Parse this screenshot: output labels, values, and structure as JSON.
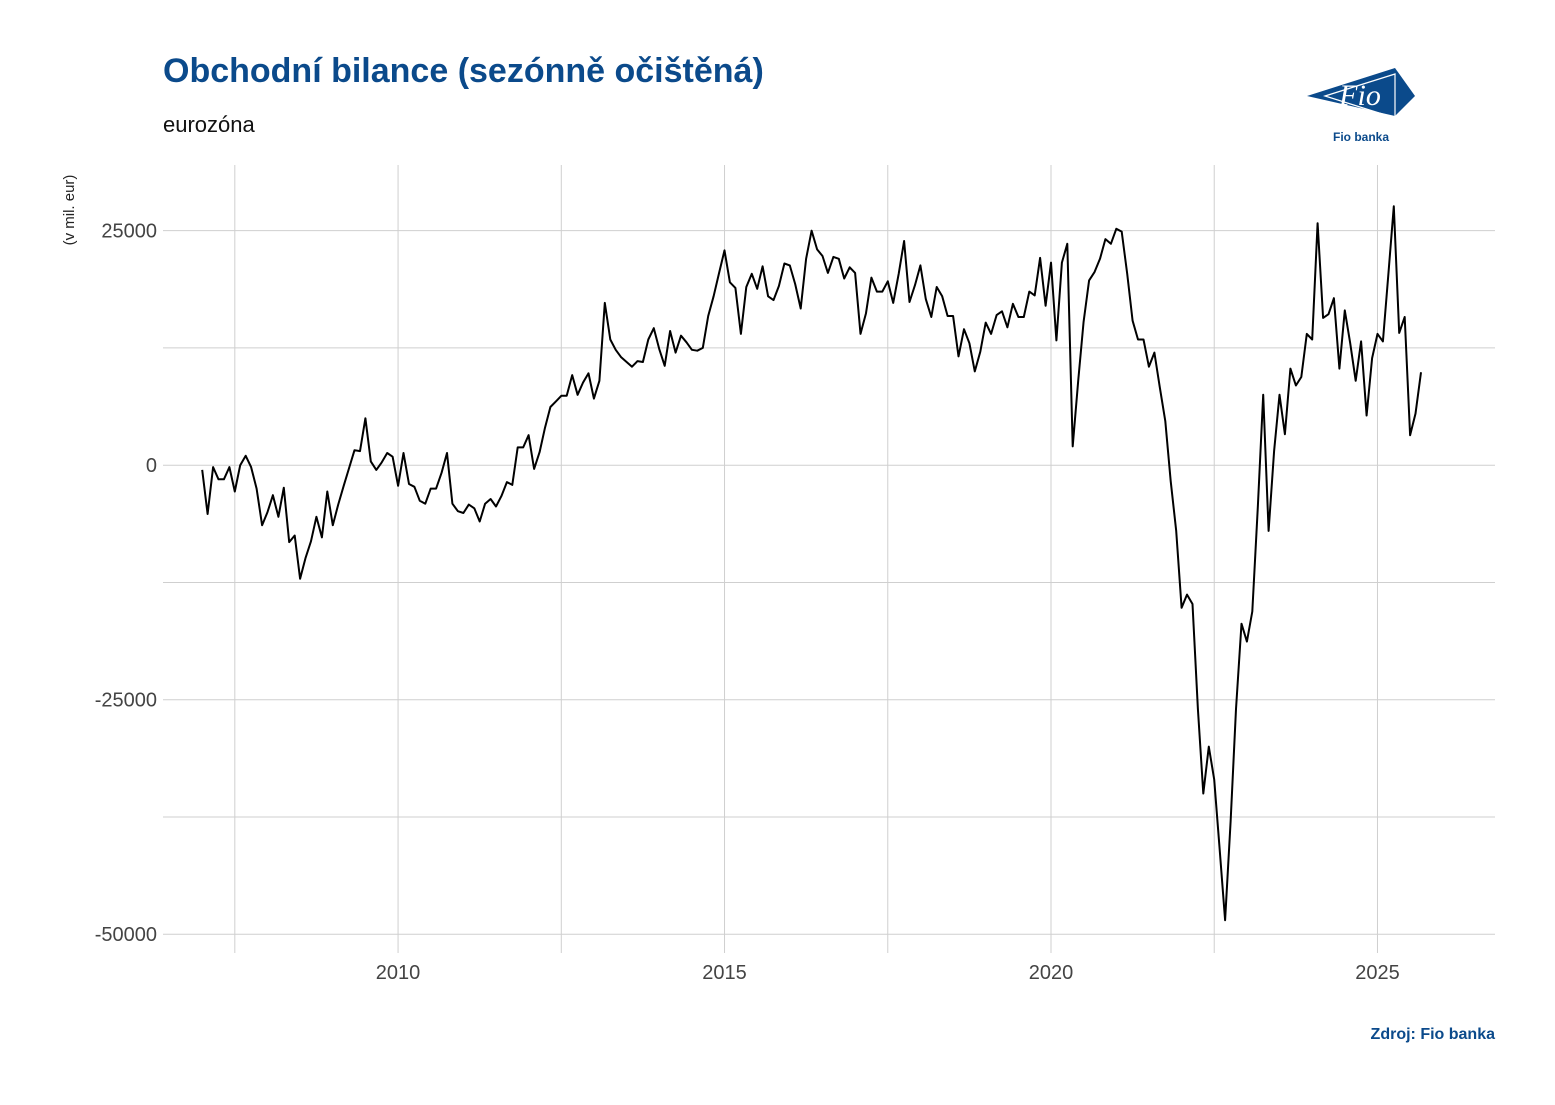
{
  "header": {
    "title": "Obchodní bilance (sezónně očištěná)",
    "subtitle": "eurozóna"
  },
  "logo": {
    "text": "Fio",
    "caption": "Fio banka",
    "color": "#0b4a8b"
  },
  "footer": {
    "source": "Zdroj: Fio banka"
  },
  "colors": {
    "accent": "#0b4a8b",
    "line": "#000000",
    "grid": "#cfcfcf"
  },
  "chart_data": {
    "type": "line",
    "title": "Obchodní bilance (sezónně očištěná)",
    "subtitle": "eurozóna",
    "xlabel": "",
    "ylabel": "(v mil. eur)",
    "xlim": [
      2006.4,
      2026.8
    ],
    "ylim": [
      -52000,
      32000
    ],
    "xticks": [
      2010,
      2015,
      2020,
      2025
    ],
    "yticks": [
      -50000,
      -25000,
      0,
      25000
    ],
    "grid": true,
    "series": [
      {
        "name": "",
        "x": [
          2007.0,
          2007.083,
          2007.167,
          2007.25,
          2007.333,
          2007.417,
          2007.5,
          2007.583,
          2007.667,
          2007.75,
          2007.833,
          2007.917,
          2008.0,
          2008.083,
          2008.167,
          2008.25,
          2008.333,
          2008.417,
          2008.5,
          2008.583,
          2008.667,
          2008.75,
          2008.833,
          2008.917,
          2009.0,
          2009.083,
          2009.167,
          2009.25,
          2009.333,
          2009.417,
          2009.5,
          2009.583,
          2009.667,
          2009.75,
          2009.833,
          2009.917,
          2010.0,
          2010.083,
          2010.167,
          2010.25,
          2010.333,
          2010.417,
          2010.5,
          2010.583,
          2010.667,
          2010.75,
          2010.833,
          2010.917,
          2011.0,
          2011.083,
          2011.167,
          2011.25,
          2011.333,
          2011.417,
          2011.5,
          2011.583,
          2011.667,
          2011.75,
          2011.833,
          2011.917,
          2012.0,
          2012.083,
          2012.167,
          2012.25,
          2012.333,
          2012.417,
          2012.5,
          2012.583,
          2012.667,
          2012.75,
          2012.833,
          2012.917,
          2013.0,
          2013.083,
          2013.167,
          2013.25,
          2013.333,
          2013.417,
          2013.5,
          2013.583,
          2013.667,
          2013.75,
          2013.833,
          2013.917,
          2014.0,
          2014.083,
          2014.167,
          2014.25,
          2014.333,
          2014.417,
          2014.5,
          2014.583,
          2014.667,
          2014.75,
          2014.833,
          2014.917,
          2015.0,
          2015.083,
          2015.167,
          2015.25,
          2015.333,
          2015.417,
          2015.5,
          2015.583,
          2015.667,
          2015.75,
          2015.833,
          2015.917,
          2016.0,
          2016.083,
          2016.167,
          2016.25,
          2016.333,
          2016.417,
          2016.5,
          2016.583,
          2016.667,
          2016.75,
          2016.833,
          2016.917,
          2017.0,
          2017.083,
          2017.167,
          2017.25,
          2017.333,
          2017.417,
          2017.5,
          2017.583,
          2017.667,
          2017.75,
          2017.833,
          2017.917,
          2018.0,
          2018.083,
          2018.167,
          2018.25,
          2018.333,
          2018.417,
          2018.5,
          2018.583,
          2018.667,
          2018.75,
          2018.833,
          2018.917,
          2019.0,
          2019.083,
          2019.167,
          2019.25,
          2019.333,
          2019.417,
          2019.5,
          2019.583,
          2019.667,
          2019.75,
          2019.833,
          2019.917,
          2020.0,
          2020.083,
          2020.167,
          2020.25,
          2020.333,
          2020.417,
          2020.5,
          2020.583,
          2020.667,
          2020.75,
          2020.833,
          2020.917,
          2021.0,
          2021.083,
          2021.167,
          2021.25,
          2021.333,
          2021.417,
          2021.5,
          2021.583,
          2021.667,
          2021.75,
          2021.833,
          2021.917,
          2022.0,
          2022.083,
          2022.167,
          2022.25,
          2022.333,
          2022.417,
          2022.5,
          2022.583,
          2022.667,
          2022.75,
          2022.833,
          2022.917,
          2023.0,
          2023.083,
          2023.167,
          2023.25,
          2023.333,
          2023.417,
          2023.5,
          2023.583,
          2023.667,
          2023.75,
          2023.833,
          2023.917,
          2024.0,
          2024.083,
          2024.167,
          2024.25,
          2024.333,
          2024.417,
          2024.5,
          2024.583,
          2024.667,
          2024.75,
          2024.833,
          2024.917,
          2025.0,
          2025.083,
          2025.167,
          2025.25,
          2025.333,
          2025.417,
          2025.5,
          2025.583,
          2025.667
        ],
        "y": [
          -500,
          -5200,
          -200,
          -1500,
          -1500,
          -200,
          -2800,
          0,
          1000,
          -200,
          -2500,
          -6400,
          -5000,
          -3200,
          -5500,
          -2400,
          -8200,
          -7500,
          -12100,
          -9900,
          -8100,
          -5500,
          -7700,
          -2800,
          -6400,
          -4200,
          -2200,
          -300,
          1600,
          1500,
          5000,
          400,
          -500,
          300,
          1300,
          900,
          -2200,
          1300,
          -2000,
          -2300,
          -3800,
          -4100,
          -2500,
          -2500,
          -800,
          1300,
          -4100,
          -4900,
          -5100,
          -4200,
          -4600,
          -6000,
          -4100,
          -3600,
          -4400,
          -3300,
          -1800,
          -2100,
          1900,
          1900,
          3200,
          -400,
          1400,
          4000,
          6200,
          6800,
          7400,
          7400,
          9600,
          7500,
          8800,
          9800,
          7100,
          9000,
          17300,
          13400,
          12300,
          11500,
          11000,
          10500,
          11100,
          11000,
          13400,
          14600,
          12400,
          10600,
          14300,
          12000,
          13800,
          13100,
          12300,
          12200,
          12500,
          15900,
          18000,
          20500,
          22900,
          19500,
          18900,
          14000,
          19000,
          20400,
          18800,
          21200,
          18000,
          17600,
          19100,
          21500,
          21300,
          19300,
          16700,
          22000,
          25000,
          23000,
          22300,
          20500,
          22200,
          22000,
          19900,
          21100,
          20500,
          14000,
          16200,
          20000,
          18500,
          18500,
          19600,
          17300,
          20400,
          23900,
          17400,
          19200,
          21300,
          17700,
          15800,
          19000,
          18000,
          15900,
          15900,
          11600,
          14500,
          13000,
          10000,
          12100,
          15200,
          14000,
          16000,
          16400,
          14700,
          17200,
          15800,
          15800,
          18500,
          18100,
          22100,
          17000,
          21600,
          13300,
          21600,
          23600,
          2000,
          9000,
          15300,
          19700,
          20600,
          22000,
          24100,
          23600,
          25200,
          24900,
          20400,
          15400,
          13400,
          13400,
          10500,
          12000,
          8300,
          4700,
          -1700,
          -7000,
          -15200,
          -13800,
          -14800,
          -26000,
          -35000,
          -30000,
          -33500,
          -41000,
          -48500,
          -38000,
          -26000,
          -16900,
          -18800,
          -15600,
          -4500,
          7500,
          -7000,
          1500,
          7500,
          3300,
          10300,
          8500,
          9400,
          14000,
          13400,
          25800,
          15700,
          16100,
          17800,
          10300,
          16500,
          13000,
          9000,
          13200,
          5300,
          11400,
          14000,
          13200,
          20400,
          27600,
          14100,
          15800,
          3200,
          5500,
          9900
        ]
      }
    ]
  }
}
